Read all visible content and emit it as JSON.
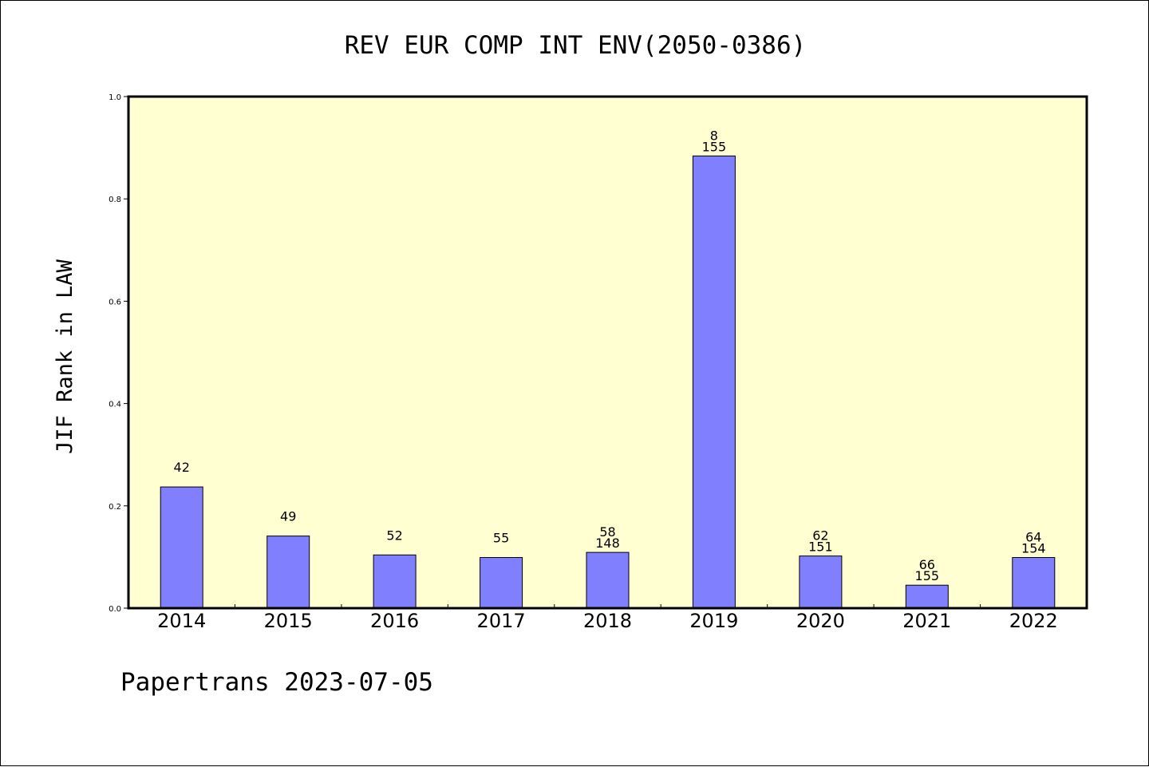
{
  "colors": {
    "plot_background": "#ffffd2",
    "bar_fill": "#8080ff",
    "bar_stroke": "#000000",
    "axis": "#000000",
    "page_background": "#ffffff"
  },
  "footer": {
    "text": "Papertrans 2023-07-05"
  },
  "chart_data": {
    "type": "bar",
    "title": "REV EUR COMP INT ENV(2050-0386)",
    "xlabel": "",
    "ylabel": "JIF Rank in LAW",
    "ylim": [
      0,
      1.0
    ],
    "yticks": [
      0.0,
      0.2,
      0.4,
      0.6,
      0.8,
      1.0
    ],
    "ytick_labels": [
      "0.0",
      "0.2",
      "0.4",
      "0.6",
      "0.8",
      "1.0"
    ],
    "grid": false,
    "categories": [
      "2014",
      "2015",
      "2016",
      "2017",
      "2018",
      "2019",
      "2020",
      "2021",
      "2022"
    ],
    "values": [
      0.237,
      0.141,
      0.104,
      0.099,
      0.109,
      0.884,
      0.102,
      0.045,
      0.099
    ],
    "annotations": [
      [
        "42"
      ],
      [
        "49"
      ],
      [
        "52"
      ],
      [
        "55"
      ],
      [
        "58",
        "148"
      ],
      [
        "8",
        "155"
      ],
      [
        "62",
        "151"
      ],
      [
        "66",
        "155"
      ],
      [
        "64",
        "154"
      ]
    ]
  }
}
